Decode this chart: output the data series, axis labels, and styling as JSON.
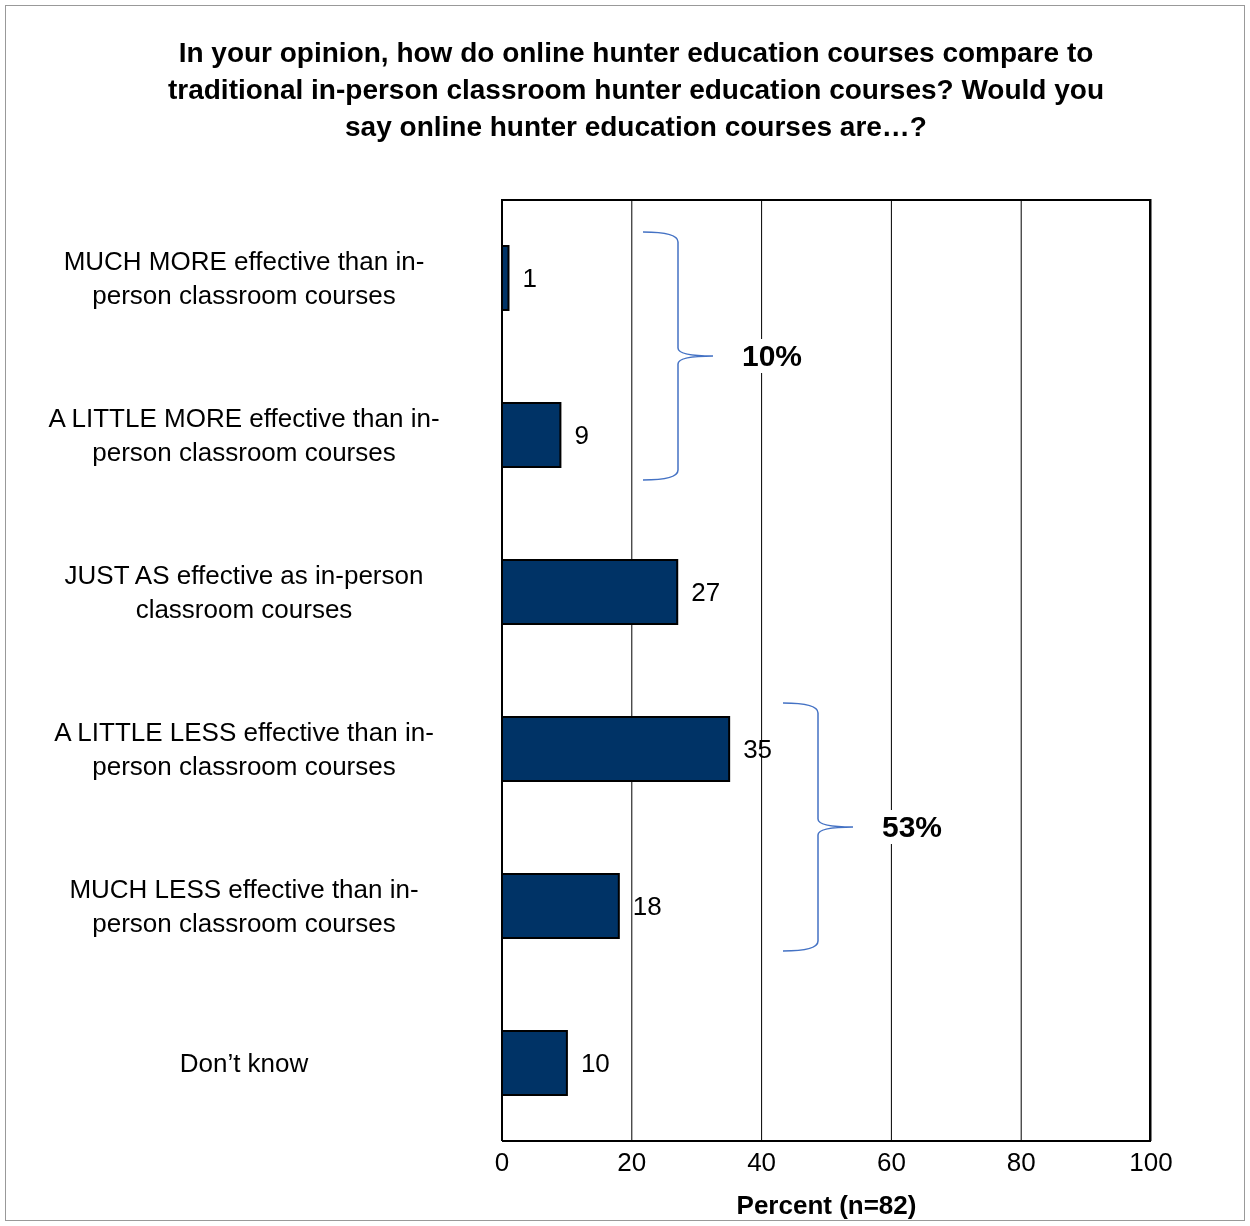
{
  "chart_data": {
    "type": "bar",
    "orientation": "horizontal",
    "title": "In your opinion, how do online hunter education courses compare to traditional in-person classroom hunter education courses? Would you say online hunter education courses are…?",
    "xlabel": "Percent (n=82)",
    "categories": [
      "MUCH MORE effective than in-person classroom courses",
      "A LITTLE MORE effective than in-person classroom courses",
      "JUST AS effective as in-person classroom courses",
      "A LITTLE LESS effective than in-person classroom courses",
      "MUCH LESS effective than in-person classroom courses",
      "Don’t know"
    ],
    "values": [
      1,
      9,
      27,
      35,
      18,
      10
    ],
    "color": "#003366",
    "xlim": [
      0,
      100
    ],
    "xticks": [
      0,
      20,
      40,
      60,
      80,
      100
    ],
    "grid": "x",
    "data_labels": true,
    "annotations": [
      "10%",
      "53%"
    ]
  }
}
